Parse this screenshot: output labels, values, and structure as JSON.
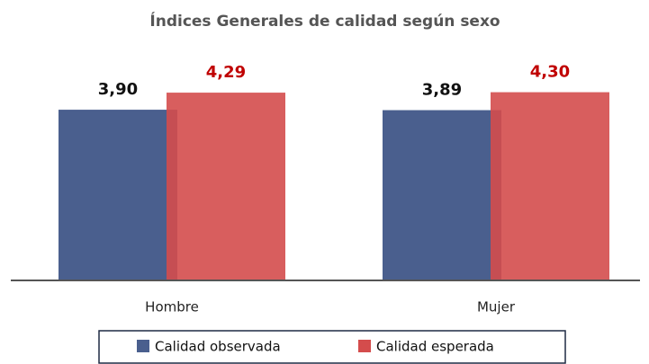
{
  "chart_data": {
    "type": "bar",
    "title": "Índices Generales de calidad según sexo",
    "categories": [
      "Hombre",
      "Mujer"
    ],
    "series": [
      {
        "name": "Calidad observada",
        "color": "#4a5f8e",
        "values": [
          3.9,
          3.89
        ],
        "value_labels": [
          "3,90",
          "3,89"
        ]
      },
      {
        "name": "Calidad esperada",
        "color": "#d44c4c",
        "values": [
          4.29,
          4.3
        ],
        "value_labels": [
          "4,29",
          "4,30"
        ]
      }
    ],
    "ylim": [
      0,
      5
    ],
    "legend": "bottom"
  }
}
